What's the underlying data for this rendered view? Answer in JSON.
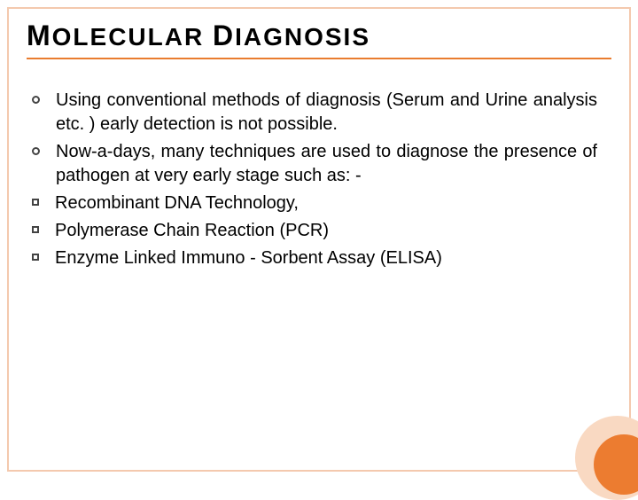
{
  "title_parts": {
    "cap1": "M",
    "word1": "OLECULAR",
    "space": " ",
    "cap2": "D",
    "word2": "IAGNOSIS"
  },
  "colors": {
    "border": "#f4c9ae",
    "underline": "#e97c2f",
    "outer_circle": "#f9d9c2",
    "inner_circle": "#ec7c30",
    "text": "#000000",
    "background": "#ffffff"
  },
  "typography": {
    "title_fontsize": 28,
    "body_fontsize": 20,
    "font_family": "Arial",
    "title_weight": "bold"
  },
  "bullets": [
    {
      "marker": "circle",
      "text": "Using conventional methods of diagnosis (Serum and Urine analysis etc. ) early detection is not possible."
    },
    {
      "marker": "circle",
      "text": "Now-a-days, many techniques are used to diagnose the presence of pathogen at very early stage such as: -"
    },
    {
      "marker": "square",
      "text": "Recombinant DNA Technology,"
    },
    {
      "marker": "square",
      "text": "Polymerase Chain Reaction (PCR)"
    },
    {
      "marker": "square",
      "text": "Enzyme Linked Immuno - Sorbent Assay (ELISA)"
    }
  ]
}
